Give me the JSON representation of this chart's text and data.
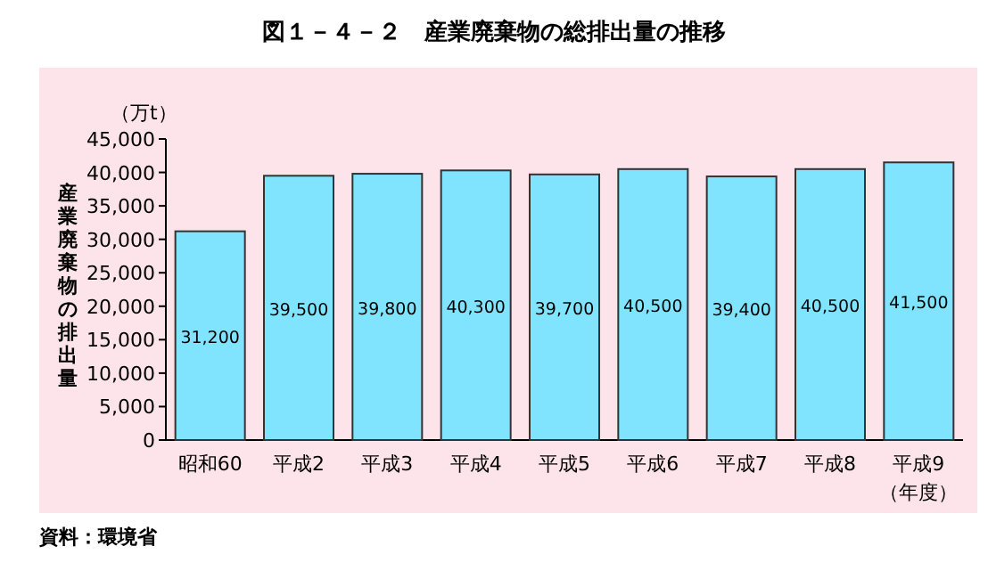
{
  "chart_data": {
    "type": "bar",
    "title": "図１－４－２　産業廃棄物の総排出量の推移",
    "ylabel": "産業廃棄物の排出量",
    "annotations": [
      "（万t）",
      "資料：環境省"
    ],
    "xlabel": "（年度）",
    "categories": [
      "昭和60",
      "平成2",
      "平成3",
      "平成4",
      "平成5",
      "平成6",
      "平成7",
      "平成8",
      "平成9"
    ],
    "values": [
      31200,
      39500,
      39800,
      40300,
      39700,
      40500,
      39400,
      40500,
      41500
    ],
    "value_labels": [
      "31,200",
      "39,500",
      "39,800",
      "40,300",
      "39,700",
      "40,500",
      "39,400",
      "40,500",
      "41,500"
    ],
    "color": "#80e4ff",
    "ylim": [
      0,
      45000
    ],
    "yticks": [
      {
        "value": 0,
        "label": "0"
      },
      {
        "value": 5000,
        "label": "5,000"
      },
      {
        "value": 10000,
        "label": "10,000"
      },
      {
        "value": 15000,
        "label": "15,000"
      },
      {
        "value": 20000,
        "label": "20,000"
      },
      {
        "value": 25000,
        "label": "25,000"
      },
      {
        "value": 30000,
        "label": "30,000"
      },
      {
        "value": 35000,
        "label": "35,000"
      },
      {
        "value": 40000,
        "label": "40,000"
      },
      {
        "value": 45000,
        "label": "45,000"
      }
    ],
    "grid": false
  }
}
